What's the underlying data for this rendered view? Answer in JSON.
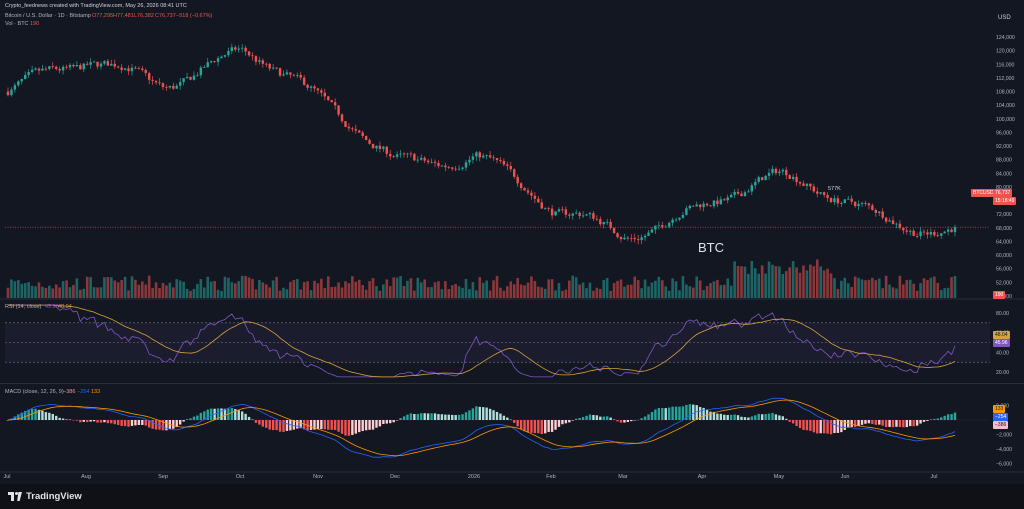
{
  "header": {
    "attribution": "Crypto_feednews created with TradingView.com, May 26, 2026 08:41 UTC",
    "symbol_title": "Bitcoin / U.S. Dollar · 1D · Bitstamp",
    "ohlc": {
      "o": "O77,295",
      "h": "H77,481",
      "l": "L76,382",
      "c": "C76,737",
      "chg": "−518 (−0.67%)"
    },
    "vol_label": "Vol · BTC",
    "vol_value": "190",
    "currency": "USD"
  },
  "price_axis": {
    "ticks": [
      "124,000",
      "120,000",
      "116,000",
      "112,000",
      "108,000",
      "104,000",
      "100,000",
      "96,000",
      "92,000",
      "88,000",
      "84,000",
      "80,000",
      "76,000",
      "72,000",
      "68,000",
      "64,000",
      "60,000",
      "56,000",
      "52,000",
      "48,000"
    ],
    "symbol_badge": "BTCUSD",
    "price_badge": "76,737",
    "countdown_badge": "15:18:49",
    "volume_badge": "190"
  },
  "annotations": {
    "btc_label": "BTC",
    "vol_marker": "577K"
  },
  "rsi": {
    "title": "RSI (14, close)",
    "value_a": "45.96",
    "value_b": "48.04",
    "ticks": [
      "80.00",
      "60.00",
      "40.00",
      "20.00"
    ],
    "badge_ma": "48.04",
    "badge_rsi": "45.96"
  },
  "macd": {
    "title": "MACD (close, 12, 26, 9)",
    "v_hist": "−386",
    "v_macd": "−254",
    "v_signal": "133",
    "ticks": [
      "2,000",
      "0",
      "−2,000",
      "−4,000",
      "−6,000"
    ],
    "badge_signal": "133",
    "badge_macd": "−254",
    "badge_hist": "−386"
  },
  "time_axis": [
    "Jul",
    "Aug",
    "Sep",
    "Oct",
    "Nov",
    "Dec",
    "2026",
    "Feb",
    "Mar",
    "Apr",
    "May",
    "Jun",
    "Jul"
  ],
  "footer": {
    "brand": "TradingView"
  },
  "colors": {
    "up": "#26a69a",
    "down": "#ef5350",
    "rsi": "#7e57c2",
    "rsi_ma": "#d9a13b",
    "macd": "#2962ff",
    "signal": "#ff9800",
    "bg": "#131722"
  },
  "chart_data": {
    "type": "line",
    "title": "Bitcoin / U.S. Dollar · 1D · Bitstamp",
    "xlabel": "",
    "ylabel": "USD",
    "ylim": [
      46000,
      126000
    ],
    "x": [
      "Jul",
      "Aug",
      "Sep",
      "Oct",
      "Nov",
      "Dec",
      "2026",
      "Feb",
      "Mar",
      "Apr",
      "May"
    ],
    "series": [
      {
        "name": "BTC",
        "values": [
          108000,
          115000,
          112000,
          121000,
          103000,
          89000,
          90000,
          71000,
          67000,
          76000,
          81000
        ]
      }
    ]
  }
}
